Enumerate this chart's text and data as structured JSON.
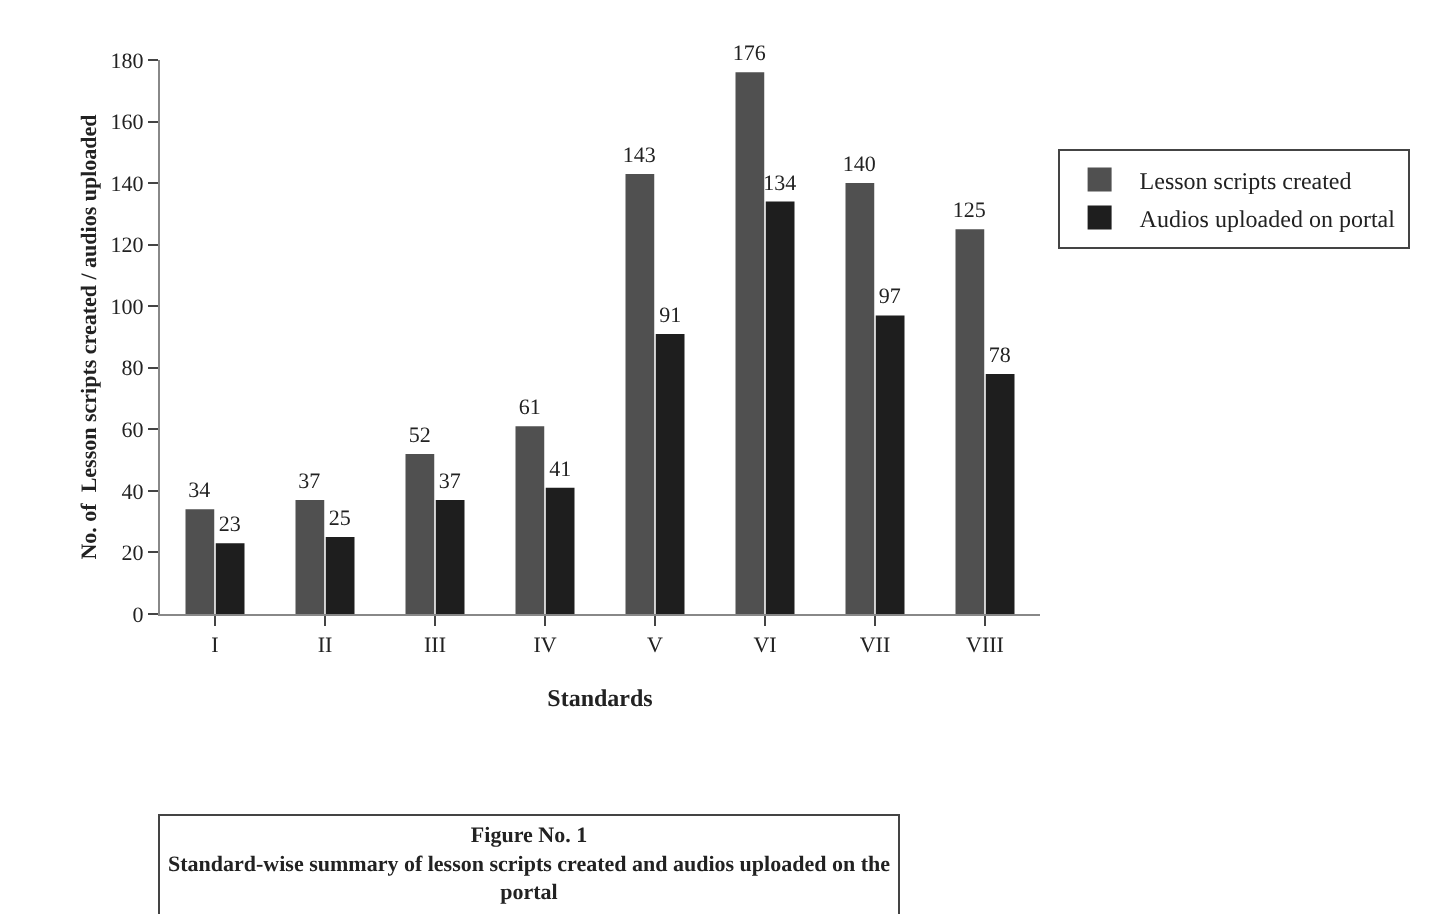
{
  "chart_data": {
    "type": "bar",
    "xlabel": "Standards",
    "ylabel": "No. of  Lesson scripts created / audios uploaded",
    "categories": [
      "I",
      "II",
      "III",
      "IV",
      "V",
      "VI",
      "VII",
      "VIII"
    ],
    "series": [
      {
        "name": "Lesson scripts created",
        "color": "#505050",
        "values": [
          34,
          37,
          52,
          61,
          143,
          176,
          140,
          125
        ]
      },
      {
        "name": "Audios uploaded on portal",
        "color": "#1e1e1e",
        "values": [
          23,
          25,
          37,
          41,
          91,
          134,
          97,
          78
        ]
      }
    ],
    "ylim": [
      0,
      180
    ],
    "yticks": [
      0,
      20,
      40,
      60,
      80,
      100,
      120,
      140,
      160,
      180
    ],
    "data_labels": true,
    "grid": false,
    "legend": "right",
    "annotations": [
      "Figure No. 1\nStandard-wise summary of lesson scripts created and audios uploaded on the\nportal"
    ]
  }
}
